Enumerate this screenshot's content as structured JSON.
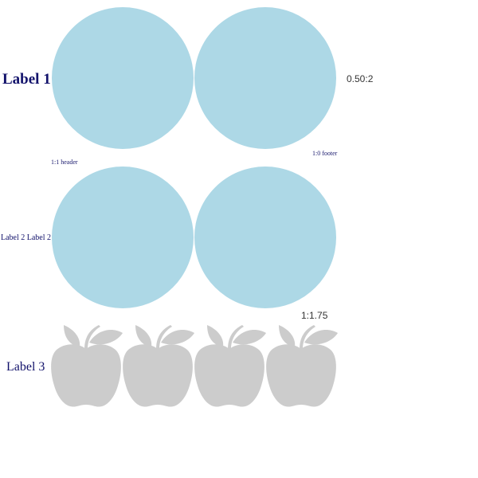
{
  "colors": {
    "circle_fill": "#add8e6",
    "apple_fill": "#cccccc",
    "label_color": "#12126b",
    "ratio_color": "#333333"
  },
  "rows": [
    {
      "label": "Label 1",
      "shape": "circle",
      "count": 2,
      "ratio_text": "0.50:2",
      "footer_note": "1:0 footer"
    },
    {
      "label": "Label 2 Label 2",
      "shape": "circle",
      "count": 2,
      "header_note": "1:1 header"
    },
    {
      "label": "Label 3",
      "shape": "apple-icon",
      "count": 4,
      "ratio_text": "1:1.75"
    }
  ]
}
